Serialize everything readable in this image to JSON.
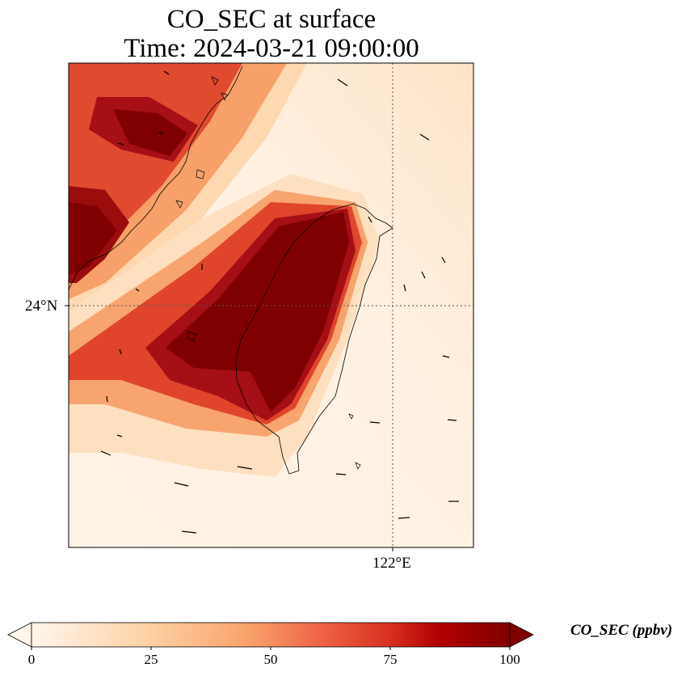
{
  "title": {
    "line1": "CO_SEC at surface",
    "line2": "Time: 2024-03-21 09:00:00"
  },
  "map": {
    "lat_ticks": [
      {
        "value": 24,
        "label": "24°N"
      }
    ],
    "lon_ticks": [
      {
        "value": 122,
        "label": "122°E"
      }
    ],
    "gridlines": "dotted",
    "field_name": "CO_SEC",
    "features": [
      "coastline",
      "wind-vectors",
      "plume-field"
    ]
  },
  "colorbar": {
    "label": "CO_SEC (ppbv)",
    "min": 0,
    "max": 100,
    "ticks": [
      0,
      25,
      50,
      75,
      100
    ],
    "extend": "both",
    "colormap": [
      "#fff5eb",
      "#fdd0a2",
      "#fdae6b",
      "#f16913",
      "#d94801",
      "#a50000",
      "#7f0000"
    ]
  }
}
